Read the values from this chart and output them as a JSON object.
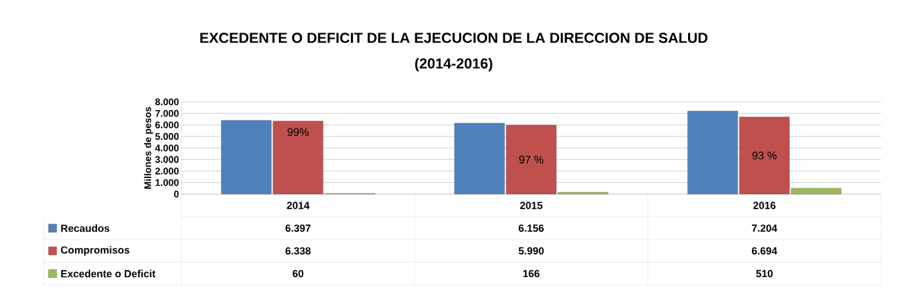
{
  "chart_data": {
    "type": "bar",
    "title": "EXCEDENTE O DEFICIT DE LA EJECUCION DE LA DIRECCION DE SALUD",
    "subtitle": "(2014-2016)",
    "ylabel": "Millones de pesos",
    "categories": [
      "2014",
      "2015",
      "2016"
    ],
    "series": [
      {
        "name": "Recaudos",
        "color": "#4f81bd",
        "values": [
          6397,
          6156,
          7204
        ],
        "value_labels": [
          "6.397",
          "6.156",
          "7.204"
        ]
      },
      {
        "name": "Compromisos",
        "color": "#c0504d",
        "values": [
          6338,
          5990,
          6694
        ],
        "value_labels": [
          "6.338",
          "5.990",
          "6.694"
        ]
      },
      {
        "name": "Excedente o Deficit",
        "color": "#9bbb59",
        "values": [
          60,
          166,
          510
        ],
        "value_labels": [
          "60",
          "166",
          "510"
        ]
      }
    ],
    "ylim": [
      0,
      8000
    ],
    "yticks": [
      {
        "value": 0,
        "label": "0"
      },
      {
        "value": 1000,
        "label": "1.000"
      },
      {
        "value": 2000,
        "label": "2.000"
      },
      {
        "value": 3000,
        "label": "3.000"
      },
      {
        "value": 4000,
        "label": "4.000"
      },
      {
        "value": 5000,
        "label": "5.000"
      },
      {
        "value": 6000,
        "label": "6.000"
      },
      {
        "value": 7000,
        "label": "7.000"
      },
      {
        "value": 8000,
        "label": "8.000"
      }
    ],
    "annotations": [
      "99%",
      "97 %",
      "93 %"
    ],
    "grid": "y",
    "legend": "bottom"
  }
}
